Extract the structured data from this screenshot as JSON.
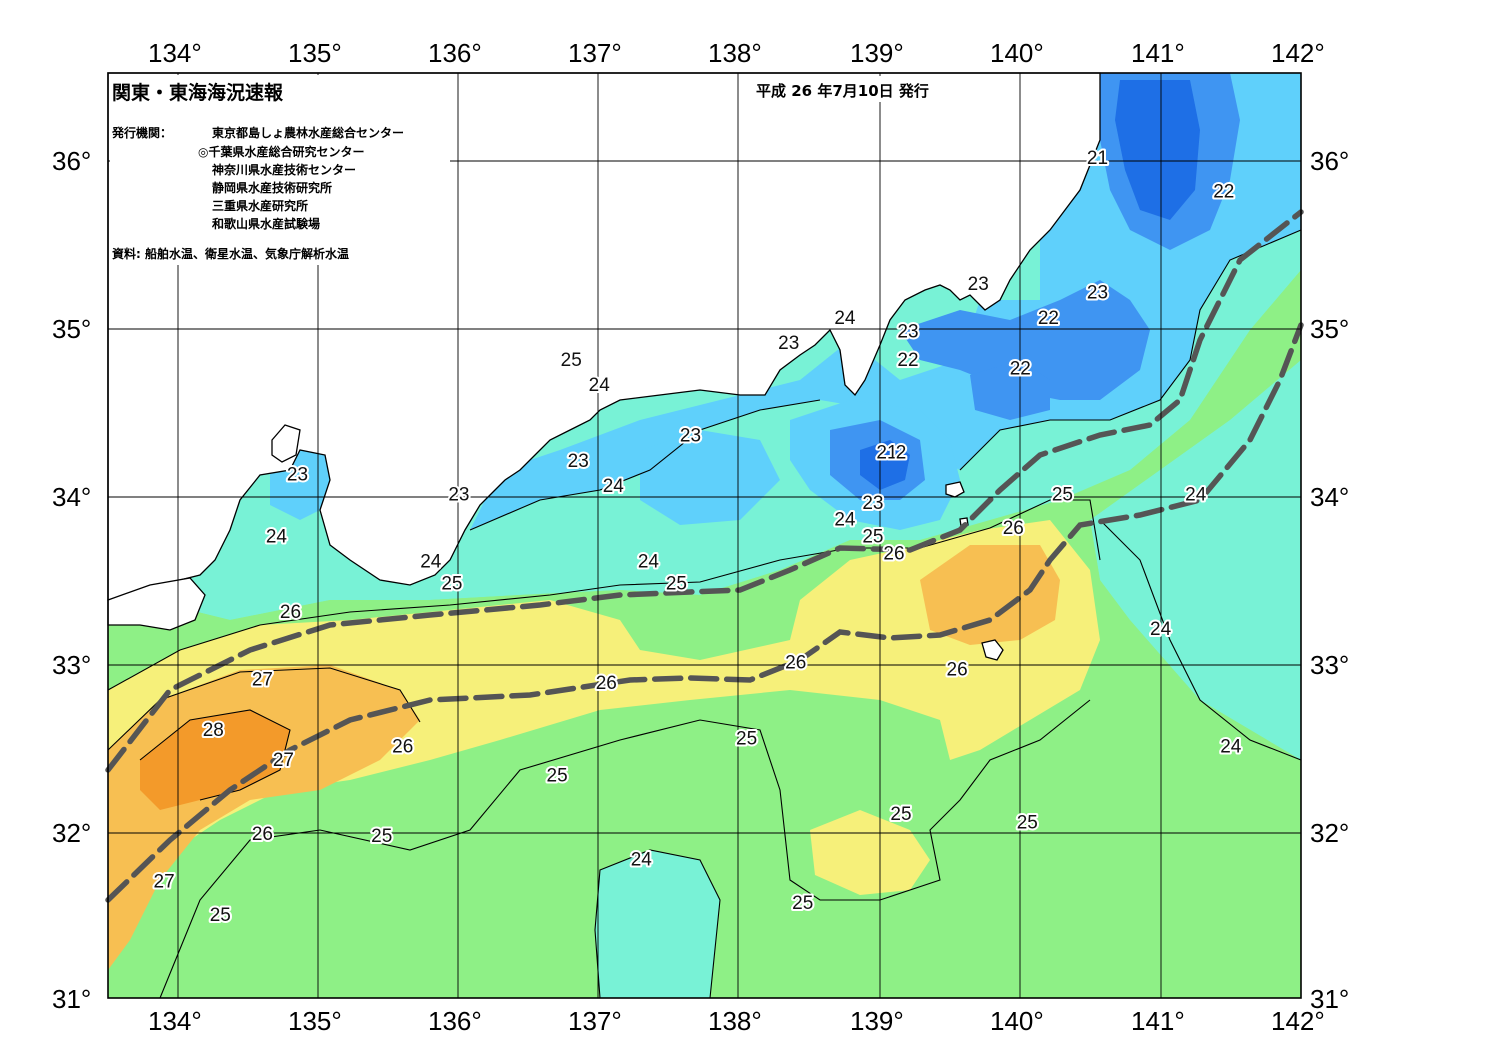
{
  "header": {
    "title": "関東・東海海況速報",
    "issue_date": "平成 26 年7月10日 発行",
    "agencies_label": "発行機関：",
    "agencies": [
      "東京都島しょ農林水産総合センター",
      "◎千葉県水産総合研究センター",
      "神奈川県水産技術センター",
      "静岡県水産技術研究所",
      "三重県水産研究所",
      "和歌山県水産試験場"
    ],
    "sources": "資料: 船舶水温、衛星水温、気象庁解析水温"
  },
  "axes": {
    "longitude_ticks": [
      "134°",
      "135°",
      "136°",
      "137°",
      "138°",
      "139°",
      "140°",
      "141°",
      "142°"
    ],
    "latitude_ticks": [
      "36°",
      "35°",
      "34°",
      "33°",
      "32°",
      "31°"
    ],
    "bottom_right_tick": "142°"
  },
  "map": {
    "lon_range": [
      133.5,
      142.0
    ],
    "lat_range": [
      31.0,
      36.5
    ],
    "grid": true,
    "colors": {
      "land": "#ffffff",
      "t21": "#1e6fe6",
      "t22": "#3f95f2",
      "t23": "#5fd0fb",
      "t24": "#78f2d6",
      "t25": "#8ef086",
      "t26": "#f6f07a",
      "t27": "#f7bf52",
      "t28": "#f39a2a",
      "kuroshio_axis": "#555555"
    },
    "contour_labels": [
      {
        "text": "21",
        "lon": 140.55,
        "lat": 36.0
      },
      {
        "text": "22",
        "lon": 141.45,
        "lat": 35.8
      },
      {
        "text": "23",
        "lon": 140.55,
        "lat": 35.2
      },
      {
        "text": "22",
        "lon": 140.2,
        "lat": 35.05
      },
      {
        "text": "23",
        "lon": 139.7,
        "lat": 35.25
      },
      {
        "text": "24",
        "lon": 138.75,
        "lat": 35.05
      },
      {
        "text": "23",
        "lon": 138.35,
        "lat": 34.9
      },
      {
        "text": "23",
        "lon": 139.2,
        "lat": 34.97
      },
      {
        "text": "22",
        "lon": 139.2,
        "lat": 34.8
      },
      {
        "text": "22",
        "lon": 140.0,
        "lat": 34.75
      },
      {
        "text": "25",
        "lon": 136.8,
        "lat": 34.8
      },
      {
        "text": "24",
        "lon": 137.0,
        "lat": 34.65
      },
      {
        "text": "23",
        "lon": 137.65,
        "lat": 34.35
      },
      {
        "text": "21",
        "lon": 139.05,
        "lat": 34.25
      },
      {
        "text": "2",
        "lon": 139.15,
        "lat": 34.25
      },
      {
        "text": "23",
        "lon": 136.85,
        "lat": 34.2
      },
      {
        "text": "24",
        "lon": 137.1,
        "lat": 34.05
      },
      {
        "text": "23",
        "lon": 136.0,
        "lat": 34.0
      },
      {
        "text": "23",
        "lon": 134.85,
        "lat": 34.12
      },
      {
        "text": "24",
        "lon": 134.7,
        "lat": 33.75
      },
      {
        "text": "23",
        "lon": 138.95,
        "lat": 33.95
      },
      {
        "text": "24",
        "lon": 138.75,
        "lat": 33.85
      },
      {
        "text": "25",
        "lon": 138.95,
        "lat": 33.75
      },
      {
        "text": "26",
        "lon": 139.1,
        "lat": 33.65
      },
      {
        "text": "25",
        "lon": 140.3,
        "lat": 34.0
      },
      {
        "text": "26",
        "lon": 139.95,
        "lat": 33.8
      },
      {
        "text": "24",
        "lon": 141.25,
        "lat": 34.0
      },
      {
        "text": "24",
        "lon": 135.8,
        "lat": 33.6
      },
      {
        "text": "24",
        "lon": 137.35,
        "lat": 33.6
      },
      {
        "text": "25",
        "lon": 135.95,
        "lat": 33.47
      },
      {
        "text": "25",
        "lon": 137.55,
        "lat": 33.47
      },
      {
        "text": "26",
        "lon": 134.8,
        "lat": 33.3
      },
      {
        "text": "24",
        "lon": 141.0,
        "lat": 33.2
      },
      {
        "text": "26",
        "lon": 138.4,
        "lat": 33.0
      },
      {
        "text": "26",
        "lon": 139.55,
        "lat": 32.96
      },
      {
        "text": "27",
        "lon": 134.6,
        "lat": 32.9
      },
      {
        "text": "26",
        "lon": 137.05,
        "lat": 32.88
      },
      {
        "text": "28",
        "lon": 134.25,
        "lat": 32.6
      },
      {
        "text": "25",
        "lon": 138.05,
        "lat": 32.55
      },
      {
        "text": "26",
        "lon": 135.6,
        "lat": 32.5
      },
      {
        "text": "27",
        "lon": 134.75,
        "lat": 32.42
      },
      {
        "text": "24",
        "lon": 141.5,
        "lat": 32.5
      },
      {
        "text": "25",
        "lon": 136.7,
        "lat": 32.33
      },
      {
        "text": "25",
        "lon": 139.15,
        "lat": 32.1
      },
      {
        "text": "25",
        "lon": 140.05,
        "lat": 32.05
      },
      {
        "text": "26",
        "lon": 134.6,
        "lat": 31.98
      },
      {
        "text": "25",
        "lon": 135.45,
        "lat": 31.97
      },
      {
        "text": "24",
        "lon": 137.3,
        "lat": 31.83
      },
      {
        "text": "27",
        "lon": 133.9,
        "lat": 31.7
      },
      {
        "text": "25",
        "lon": 138.45,
        "lat": 31.57
      },
      {
        "text": "25",
        "lon": 134.3,
        "lat": 31.5
      }
    ]
  }
}
